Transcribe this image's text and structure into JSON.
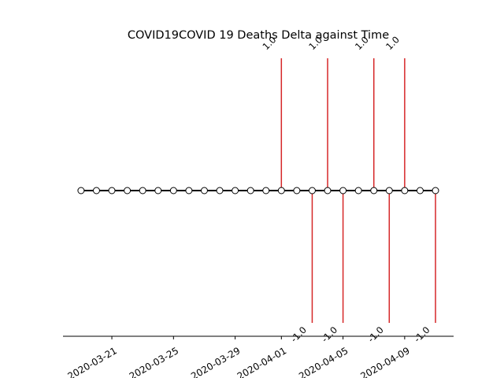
{
  "chart_data": {
    "type": "timeline",
    "title": "COVID19COVID 19 Deaths Delta against Time",
    "x_axis": {
      "type": "date",
      "range": [
        "2020-03-18",
        "2020-04-11"
      ],
      "ticks": [
        "2020-03-21",
        "2020-03-25",
        "2020-03-29",
        "2020-04-01",
        "2020-04-05",
        "2020-04-09"
      ]
    },
    "dates": [
      "2020-03-19",
      "2020-03-20",
      "2020-03-21",
      "2020-03-22",
      "2020-03-23",
      "2020-03-24",
      "2020-03-25",
      "2020-03-26",
      "2020-03-27",
      "2020-03-28",
      "2020-03-29",
      "2020-03-30",
      "2020-03-31",
      "2020-04-01",
      "2020-04-02",
      "2020-04-03",
      "2020-04-04",
      "2020-04-05",
      "2020-04-06",
      "2020-04-07",
      "2020-04-08",
      "2020-04-09",
      "2020-04-10",
      "2020-04-11"
    ],
    "events": [
      {
        "date": "2020-04-01",
        "label": "1.0",
        "direction": "up"
      },
      {
        "date": "2020-04-03",
        "label": "-1.0",
        "direction": "down"
      },
      {
        "date": "2020-04-04",
        "label": "1.0",
        "direction": "up"
      },
      {
        "date": "2020-04-05",
        "label": "-1.0",
        "direction": "down"
      },
      {
        "date": "2020-04-07",
        "label": "1.0",
        "direction": "up"
      },
      {
        "date": "2020-04-08",
        "label": "-1.0",
        "direction": "down"
      },
      {
        "date": "2020-04-09",
        "label": "1.0",
        "direction": "up"
      },
      {
        "date": "2020-04-11",
        "label": "-1.0",
        "direction": "down"
      }
    ],
    "grid": false,
    "colors": {
      "stem": "#d62728",
      "baseline": "#000000",
      "marker_fill": "#ffffff",
      "marker_edge": "#000000"
    }
  }
}
